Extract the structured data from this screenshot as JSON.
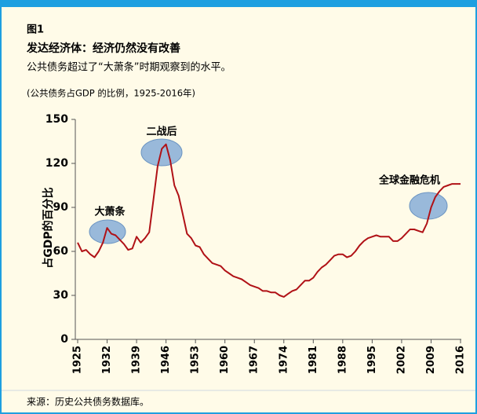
{
  "chart_data": {
    "type": "line",
    "label": "图1",
    "title": "发达经济体：经济仍然没有改善",
    "subtitle": "公共债务超过了“大萧条”时期观察到的水平。",
    "note": "(公共债务占GDP 的比例，1925-2016年)",
    "ylabel": "占GDP的百分比",
    "source": "来源：历史公共债务数据库。",
    "annotations": [
      "大萧条",
      "二战后",
      "全球金融危机"
    ],
    "x": [
      1925,
      1926,
      1927,
      1928,
      1929,
      1930,
      1931,
      1932,
      1933,
      1934,
      1935,
      1936,
      1937,
      1938,
      1939,
      1940,
      1941,
      1942,
      1943,
      1944,
      1945,
      1946,
      1947,
      1948,
      1949,
      1950,
      1951,
      1952,
      1953,
      1954,
      1955,
      1956,
      1957,
      1958,
      1959,
      1960,
      1961,
      1962,
      1963,
      1964,
      1965,
      1966,
      1967,
      1968,
      1969,
      1970,
      1971,
      1972,
      1973,
      1974,
      1975,
      1976,
      1977,
      1978,
      1979,
      1980,
      1981,
      1982,
      1983,
      1984,
      1985,
      1986,
      1987,
      1988,
      1989,
      1990,
      1991,
      1992,
      1993,
      1994,
      1995,
      1996,
      1997,
      1998,
      1999,
      2000,
      2001,
      2002,
      2003,
      2004,
      2005,
      2006,
      2007,
      2008,
      2009,
      2010,
      2011,
      2012,
      2013,
      2014,
      2015,
      2016
    ],
    "series": [
      {
        "color": "#b01116",
        "values": [
          66,
          60,
          61,
          58,
          56,
          60,
          66,
          76,
          72,
          71,
          68,
          65,
          61,
          62,
          70,
          66,
          69,
          73,
          95,
          118,
          130,
          133,
          122,
          105,
          98,
          85,
          72,
          69,
          64,
          63,
          58,
          55,
          52,
          51,
          50,
          47,
          45,
          43,
          42,
          41,
          39,
          37,
          36,
          35,
          33,
          33,
          32,
          32,
          30,
          29,
          31,
          33,
          34,
          37,
          40,
          40,
          42,
          46,
          49,
          51,
          54,
          57,
          58,
          58,
          56,
          57,
          60,
          64,
          67,
          69,
          70,
          71,
          70,
          70,
          70,
          67,
          67,
          69,
          72,
          75,
          75,
          74,
          73,
          79,
          90,
          97,
          101,
          104,
          105,
          106,
          106,
          106
        ]
      }
    ],
    "xlim": [
      1925,
      2016
    ],
    "xticks": [
      1925,
      1932,
      1939,
      1946,
      1953,
      1960,
      1967,
      1974,
      1981,
      1988,
      1995,
      2002,
      2009,
      2016
    ],
    "ylim": [
      0,
      150
    ],
    "yticks": [
      0,
      30,
      60,
      90,
      120,
      150
    ],
    "grid": false
  }
}
